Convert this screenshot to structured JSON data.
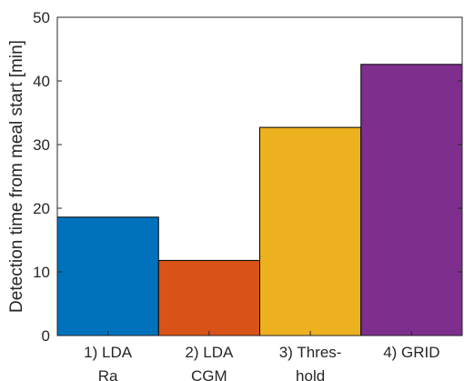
{
  "chart_data": {
    "type": "bar",
    "categories": [
      [
        "1) LDA",
        "Ra"
      ],
      [
        "2) LDA",
        "CGM"
      ],
      [
        "3) Thres-",
        "hold"
      ],
      [
        "4) GRID"
      ]
    ],
    "values": [
      18.6,
      11.8,
      32.7,
      42.6
    ],
    "colors": [
      "#0072BD",
      "#D95319",
      "#EDB120",
      "#7E2F8E"
    ],
    "ylabel": "Detection time from meal start [min]",
    "xlabel": "",
    "title": "",
    "ylim": [
      0,
      50
    ],
    "yticks": [
      0,
      10,
      20,
      30,
      40,
      50
    ],
    "grid": false
  }
}
